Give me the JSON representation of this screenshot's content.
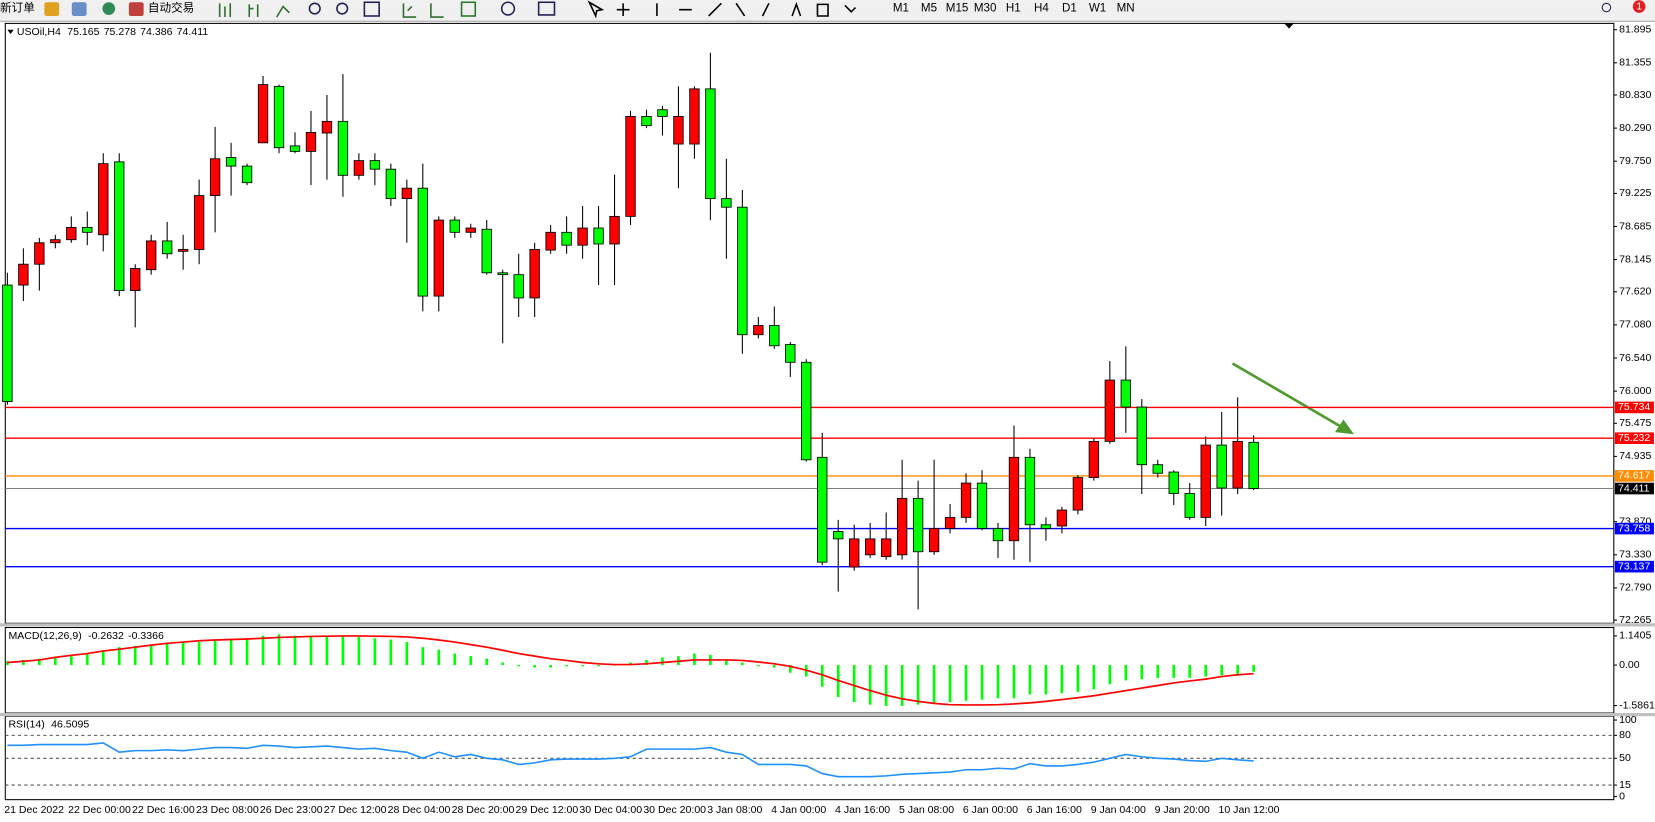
{
  "toolbar": {
    "new_order": "新订单",
    "auto_trading": "自动交易",
    "timeframes": [
      "M1",
      "M5",
      "M15",
      "M30",
      "H1",
      "H4",
      "D1",
      "W1",
      "MN"
    ],
    "notification_count": 1
  },
  "chart_data": [
    {
      "type": "candlestick",
      "title": "USOil,H4",
      "categories": [
        "21 Dec 2022",
        null,
        null,
        null,
        "22 Dec 00:00",
        null,
        null,
        null,
        "22 Dec 16:00",
        null,
        null,
        null,
        "23 Dec 08:00",
        null,
        null,
        null,
        "26 Dec 23:00",
        null,
        null,
        null,
        "27 Dec 12:00",
        null,
        null,
        null,
        "28 Dec 04:00",
        null,
        null,
        null,
        "28 Dec 20:00",
        null,
        null,
        null,
        "29 Dec 12:00",
        null,
        null,
        null,
        "30 Dec 04:00",
        null,
        null,
        null,
        "30 Dec 20:00",
        null,
        null,
        null,
        "3 Jan 08:00",
        null,
        null,
        null,
        "4 Jan 00:00",
        null,
        null,
        null,
        "4 Jan 16:00",
        null,
        null,
        null,
        "5 Jan 08:00",
        null,
        null,
        null,
        "6 Jan 00:00",
        null,
        null,
        null,
        "6 Jan 16:00",
        null,
        null,
        null,
        "9 Jan 04:00",
        null,
        null,
        null,
        "9 Jan 20:00",
        null,
        null,
        null,
        "10 Jan 12:00",
        null,
        null
      ],
      "open": [
        77.73,
        77.73,
        78.07,
        78.42,
        78.47,
        78.67,
        78.55,
        79.74,
        77.64,
        77.98,
        78.45,
        78.28,
        78.31,
        79.19,
        79.81,
        79.67,
        80.05,
        80.97,
        80.0,
        79.91,
        80.21,
        80.4,
        79.52,
        79.76,
        79.62,
        79.14,
        79.31,
        77.55,
        78.79,
        78.59,
        78.64,
        77.93,
        77.9,
        77.52,
        78.3,
        78.59,
        78.38,
        78.66,
        78.4,
        78.85,
        80.48,
        80.59,
        80.03,
        80.03,
        80.93,
        79.14,
        79.0,
        76.92,
        77.07,
        76.76,
        76.47,
        74.92,
        73.71,
        73.13,
        73.33,
        73.3,
        73.33,
        74.25,
        73.38,
        73.76,
        73.94,
        74.5,
        73.76,
        73.56,
        74.92,
        73.82,
        73.8,
        74.06,
        74.59,
        75.18,
        76.18,
        75.74,
        74.8,
        74.68,
        74.33,
        73.94,
        75.12,
        74.42,
        75.165
      ],
      "high": [
        77.93,
        78.33,
        78.5,
        78.55,
        78.85,
        78.93,
        79.88,
        79.88,
        78.07,
        78.55,
        78.76,
        78.55,
        79.45,
        80.31,
        80.05,
        79.71,
        81.14,
        81.0,
        80.22,
        80.57,
        80.83,
        81.17,
        79.88,
        79.88,
        79.71,
        79.45,
        79.71,
        78.85,
        78.85,
        78.73,
        78.79,
        77.98,
        78.24,
        78.42,
        78.71,
        78.85,
        79.02,
        79.02,
        79.53,
        80.57,
        80.59,
        80.65,
        80.97,
        80.97,
        81.52,
        79.79,
        79.28,
        77.21,
        77.38,
        76.8,
        76.52,
        75.32,
        73.9,
        73.82,
        73.85,
        74.02,
        74.88,
        74.54,
        74.88,
        74.16,
        74.66,
        74.71,
        73.85,
        75.44,
        75.06,
        73.94,
        74.11,
        74.63,
        75.23,
        76.49,
        76.73,
        75.87,
        74.88,
        74.71,
        74.5,
        75.26,
        75.66,
        75.9,
        75.278
      ],
      "low": [
        75.78,
        77.47,
        77.64,
        78.33,
        78.42,
        78.38,
        78.28,
        77.55,
        77.04,
        77.9,
        78.16,
        77.98,
        78.07,
        78.59,
        79.19,
        79.36,
        80.05,
        79.88,
        79.88,
        79.36,
        79.45,
        79.17,
        79.45,
        79.36,
        79.02,
        78.42,
        77.3,
        77.3,
        78.5,
        78.5,
        77.9,
        76.78,
        77.21,
        77.21,
        78.24,
        78.24,
        78.16,
        77.73,
        77.73,
        78.71,
        80.29,
        80.17,
        79.31,
        79.79,
        78.79,
        78.16,
        76.61,
        76.86,
        76.69,
        76.23,
        74.85,
        73.16,
        72.73,
        73.07,
        73.28,
        73.25,
        73.25,
        72.44,
        73.33,
        73.68,
        73.85,
        73.73,
        73.28,
        73.25,
        73.21,
        73.56,
        73.68,
        73.99,
        74.54,
        75.14,
        75.32,
        74.32,
        74.59,
        74.14,
        73.9,
        73.8,
        73.97,
        74.32,
        74.386
      ],
      "close": [
        75.83,
        78.07,
        78.42,
        78.47,
        78.67,
        78.59,
        79.71,
        77.64,
        78.0,
        78.45,
        78.24,
        78.31,
        79.19,
        79.79,
        79.67,
        79.4,
        81.0,
        79.97,
        79.91,
        80.22,
        80.4,
        79.52,
        79.76,
        79.62,
        79.14,
        79.31,
        77.55,
        78.79,
        78.59,
        78.66,
        77.93,
        77.9,
        77.52,
        78.31,
        78.59,
        78.38,
        78.66,
        78.4,
        78.85,
        80.48,
        80.33,
        80.48,
        80.48,
        80.93,
        79.14,
        79.0,
        76.92,
        77.07,
        76.74,
        76.47,
        74.88,
        73.21,
        73.59,
        73.59,
        73.59,
        73.59,
        74.25,
        73.38,
        73.76,
        73.94,
        74.5,
        73.76,
        73.56,
        74.92,
        73.82,
        73.76,
        74.06,
        74.59,
        75.18,
        76.18,
        75.74,
        74.8,
        74.66,
        74.33,
        73.94,
        75.12,
        74.42,
        75.18,
        74.411
      ],
      "up_color": "#ff0000",
      "down_color": "#00ff00",
      "ylim": [
        72.213,
        81.998
      ],
      "yticks": [
        81.895,
        81.355,
        {
          "value": 80.83,
          "label": "80.830"
        },
        {
          "value": 80.29,
          "label": "80.290"
        },
        {
          "value": 79.75,
          "label": "79.750"
        },
        79.225,
        78.685,
        78.145,
        {
          "value": 77.62,
          "label": "77.620"
        },
        {
          "value": 77.08,
          "label": "77.080"
        },
        {
          "value": 76.54,
          "label": "76.540"
        },
        {
          "value": 76,
          "label": "76.000"
        },
        75.475,
        74.935,
        {
          "value": 73.87,
          "label": "73.870"
        },
        {
          "value": 73.33,
          "label": "73.330"
        },
        {
          "value": 72.79,
          "label": "72.790"
        },
        72.265
      ],
      "hlines": [
        {
          "value": 75.734,
          "color": "#ff0000"
        },
        {
          "value": 75.232,
          "color": "#ff0000"
        },
        {
          "value": 74.617,
          "color": "#ff8c00"
        },
        {
          "value": 73.758,
          "color": "#0000ff"
        },
        {
          "value": 73.137,
          "color": "#0000ff"
        }
      ],
      "bid_line": true
    },
    {
      "type": "macd",
      "title": "MACD(12,26,9)",
      "histogram": [
        0.15,
        0.2,
        0.25,
        0.3,
        0.35,
        0.45,
        0.55,
        0.7,
        0.75,
        0.8,
        0.85,
        0.9,
        0.9,
        0.95,
        1.0,
        1.05,
        1.15,
        1.2,
        1.15,
        1.15,
        1.15,
        1.15,
        1.1,
        1.05,
        1.0,
        0.9,
        0.7,
        0.6,
        0.45,
        0.35,
        0.25,
        0.1,
        -0.05,
        -0.1,
        -0.1,
        -0.05,
        -0.05,
        -0.05,
        0.0,
        0.1,
        0.2,
        0.3,
        0.35,
        0.45,
        0.4,
        0.2,
        0.1,
        -0.05,
        -0.1,
        -0.3,
        -0.45,
        -0.85,
        -1.25,
        -1.45,
        -1.55,
        -1.6,
        -1.6,
        -1.55,
        -1.5,
        -1.45,
        -1.4,
        -1.35,
        -1.3,
        -1.3,
        -1.15,
        -1.15,
        -1.1,
        -1.05,
        -0.95,
        -0.75,
        -0.6,
        -0.55,
        -0.5,
        -0.5,
        -0.5,
        -0.45,
        -0.4,
        -0.35,
        -0.2632
      ],
      "signal": [
        0.1,
        0.15,
        0.2,
        0.3,
        0.38,
        0.45,
        0.55,
        0.62,
        0.7,
        0.78,
        0.85,
        0.9,
        0.95,
        0.98,
        1.0,
        1.02,
        1.05,
        1.08,
        1.1,
        1.12,
        1.13,
        1.14,
        1.14,
        1.13,
        1.12,
        1.1,
        1.05,
        0.98,
        0.9,
        0.8,
        0.7,
        0.58,
        0.45,
        0.35,
        0.25,
        0.18,
        0.1,
        0.05,
        0.02,
        0.02,
        0.05,
        0.1,
        0.15,
        0.2,
        0.2,
        0.2,
        0.18,
        0.12,
        0.05,
        -0.05,
        -0.2,
        -0.38,
        -0.6,
        -0.8,
        -1.0,
        -1.18,
        -1.32,
        -1.42,
        -1.5,
        -1.55,
        -1.56,
        -1.56,
        -1.55,
        -1.52,
        -1.48,
        -1.42,
        -1.35,
        -1.28,
        -1.2,
        -1.1,
        -1.0,
        -0.9,
        -0.8,
        -0.7,
        -0.62,
        -0.55,
        -0.45,
        -0.38,
        -0.3366
      ],
      "histogram_color": "#00ff00",
      "signal_color": "#ff0000",
      "ylim": [
        -1.878,
        1.469
      ],
      "yticks": [
        1.1405,
        {
          "value": 0,
          "label": "0.00"
        },
        -1.5861
      ]
    },
    {
      "type": "rsi",
      "title": "RSI(14)",
      "values": [
        67,
        67,
        68,
        68,
        68,
        68,
        70,
        58,
        60,
        60,
        61,
        60,
        62,
        64,
        64,
        63,
        67,
        66,
        64,
        65,
        66,
        64,
        62,
        63,
        60,
        58,
        50,
        58,
        52,
        55,
        50,
        48,
        42,
        44,
        48,
        49,
        49,
        49,
        50,
        52,
        62,
        62,
        62,
        62,
        64,
        58,
        55,
        42,
        42,
        42,
        40,
        30,
        26,
        26,
        26,
        27,
        29,
        30,
        31,
        32,
        35,
        35,
        37,
        36,
        43,
        40,
        40,
        42,
        45,
        50,
        55,
        52,
        50,
        49,
        47,
        46,
        50,
        48,
        46.5095
      ],
      "color": "#1e90ff",
      "ylim": [
        -4.1,
        105
      ],
      "yticks": [
        100,
        80,
        50,
        15,
        0
      ],
      "levels": [
        80,
        50,
        15
      ]
    }
  ]
}
